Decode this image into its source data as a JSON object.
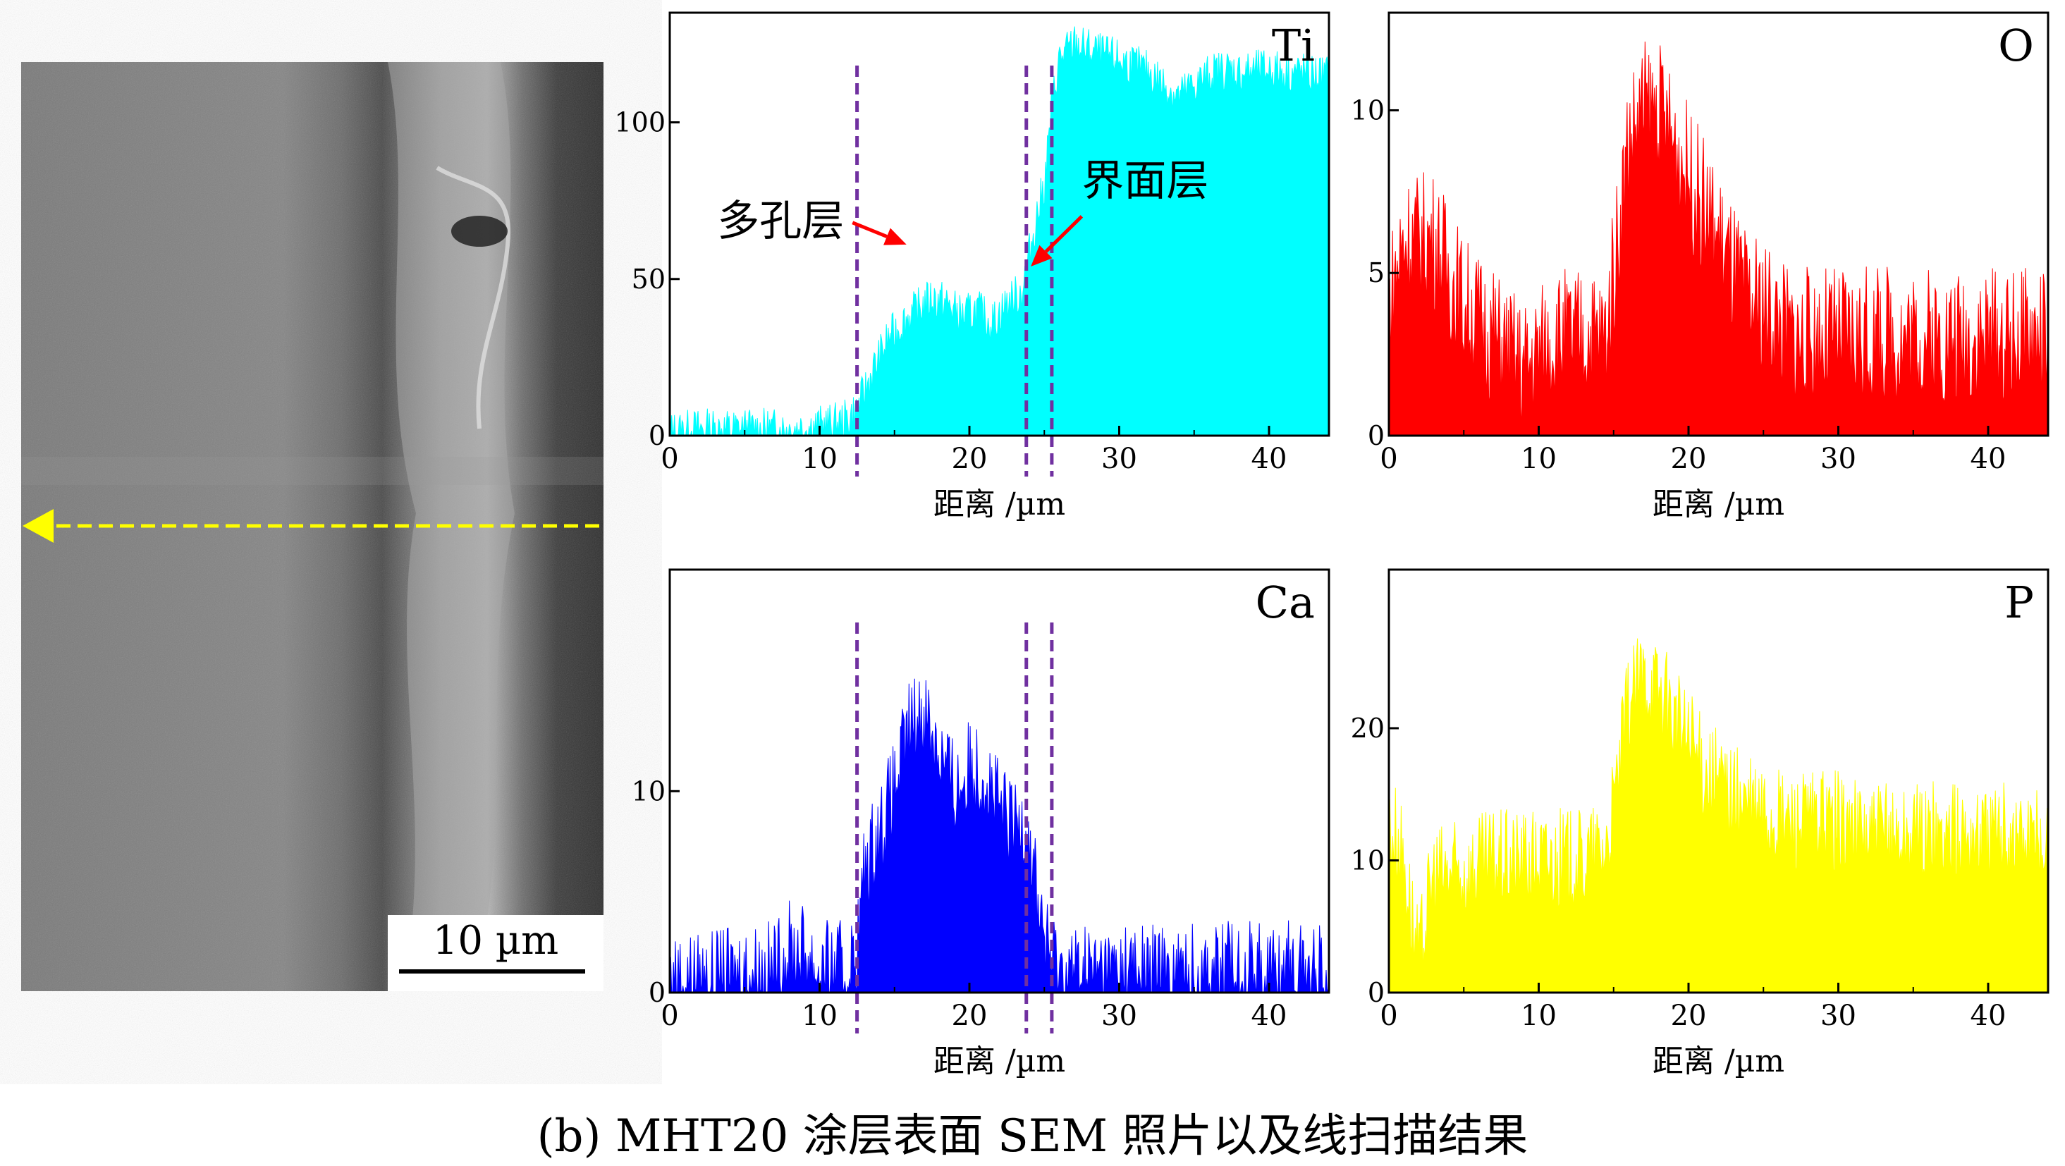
{
  "caption": "(b) MHT20 涂层表面 SEM 照片以及线扫描结果",
  "sem_image": {
    "scale_bar_label": "10 µm",
    "scan_arrow_color": "#ffff00"
  },
  "chart_data": [
    {
      "id": "ti",
      "type": "area",
      "element_label": "Ti",
      "color": "#00ffff",
      "xlabel": "距离 /µm",
      "xlim": [
        0,
        44
      ],
      "ylim": [
        0,
        135
      ],
      "xticks": [
        0,
        10,
        20,
        30,
        40
      ],
      "yticks": [
        0,
        50,
        100
      ],
      "boundaries": [
        12.5,
        23.8,
        25.5
      ],
      "boundary_color": "#7030a0",
      "annotations": [
        {
          "text": "多孔层",
          "arrow_from": [
            12.2,
            68
          ],
          "arrow_to": [
            15.8,
            61
          ]
        },
        {
          "text": "界面层",
          "arrow_from": [
            27.5,
            70
          ],
          "arrow_to": [
            24.1,
            54
          ]
        }
      ],
      "anchors": [
        [
          0,
          1
        ],
        [
          2,
          2
        ],
        [
          5,
          2
        ],
        [
          8,
          2
        ],
        [
          10,
          3
        ],
        [
          11.5,
          4
        ],
        [
          12.5,
          8
        ],
        [
          13.5,
          20
        ],
        [
          14.5,
          30
        ],
        [
          15.5,
          36
        ],
        [
          16.5,
          40
        ],
        [
          17.5,
          44
        ],
        [
          18.5,
          42
        ],
        [
          19.5,
          38
        ],
        [
          20.5,
          40
        ],
        [
          21.5,
          36
        ],
        [
          22.5,
          42
        ],
        [
          23.5,
          46
        ],
        [
          24,
          58
        ],
        [
          24.5,
          70
        ],
        [
          25,
          80
        ],
        [
          25.5,
          105
        ],
        [
          26,
          120
        ],
        [
          27,
          125
        ],
        [
          28,
          123
        ],
        [
          29,
          121
        ],
        [
          30,
          120
        ],
        [
          31,
          118
        ],
        [
          32,
          116
        ],
        [
          33,
          112
        ],
        [
          34,
          108
        ],
        [
          35,
          112
        ],
        [
          36,
          115
        ],
        [
          37,
          117
        ],
        [
          38,
          116
        ],
        [
          39,
          116
        ],
        [
          40,
          117
        ],
        [
          41,
          116
        ],
        [
          42,
          116
        ],
        [
          43,
          115
        ],
        [
          44,
          115
        ]
      ],
      "noise": 7
    },
    {
      "id": "o",
      "type": "area",
      "element_label": "O",
      "color": "#ff0000",
      "xlabel": "距离 /µm",
      "xlim": [
        0,
        44
      ],
      "ylim": [
        0,
        13
      ],
      "xticks": [
        0,
        10,
        20,
        30,
        40
      ],
      "yticks": [
        0,
        5,
        10
      ],
      "anchors": [
        [
          0,
          4
        ],
        [
          1,
          6
        ],
        [
          3,
          6
        ],
        [
          5,
          4
        ],
        [
          7,
          3
        ],
        [
          9,
          2
        ],
        [
          11,
          3
        ],
        [
          13,
          3
        ],
        [
          14.5,
          3
        ],
        [
          15,
          5
        ],
        [
          16,
          9
        ],
        [
          17,
          10
        ],
        [
          18,
          10
        ],
        [
          19,
          9
        ],
        [
          20,
          8
        ],
        [
          21,
          7
        ],
        [
          22,
          6
        ],
        [
          23,
          5
        ],
        [
          24,
          4
        ],
        [
          25,
          4
        ],
        [
          27,
          3
        ],
        [
          30,
          3
        ],
        [
          33,
          3
        ],
        [
          36,
          3
        ],
        [
          38,
          3
        ],
        [
          40,
          3
        ],
        [
          42,
          3
        ],
        [
          44,
          3
        ]
      ],
      "noise": 2.2
    },
    {
      "id": "ca",
      "type": "area",
      "element_label": "Ca",
      "color": "#0000ff",
      "xlabel": "距离 /µm",
      "xlim": [
        0,
        44
      ],
      "ylim": [
        0,
        21
      ],
      "xticks": [
        0,
        10,
        20,
        30,
        40
      ],
      "yticks": [
        0,
        10
      ],
      "boundaries": [
        12.5,
        23.8,
        25.5
      ],
      "boundary_color": "#7030a0",
      "anchors": [
        [
          0,
          0.5
        ],
        [
          3,
          0.5
        ],
        [
          5,
          1
        ],
        [
          7,
          1
        ],
        [
          8,
          2
        ],
        [
          9,
          2
        ],
        [
          10,
          1
        ],
        [
          11,
          1
        ],
        [
          12,
          1
        ],
        [
          12.5,
          2
        ],
        [
          13,
          6
        ],
        [
          14,
          8
        ],
        [
          15,
          10
        ],
        [
          16,
          13
        ],
        [
          17,
          14
        ],
        [
          18,
          12
        ],
        [
          19,
          10
        ],
        [
          20,
          11
        ],
        [
          21,
          11
        ],
        [
          22,
          9
        ],
        [
          23,
          8
        ],
        [
          23.8,
          9
        ],
        [
          24.5,
          5
        ],
        [
          25.2,
          2
        ],
        [
          26,
          1
        ],
        [
          28,
          1
        ],
        [
          30,
          1
        ],
        [
          33,
          1
        ],
        [
          36,
          1
        ],
        [
          39,
          1
        ],
        [
          41,
          1
        ],
        [
          44,
          1
        ]
      ],
      "noise": 2.6
    },
    {
      "id": "p",
      "type": "area",
      "element_label": "P",
      "color": "#ffff00",
      "xlabel": "距离 /µm",
      "xlim": [
        0,
        44
      ],
      "ylim": [
        0,
        32
      ],
      "xticks": [
        0,
        10,
        20,
        30,
        40
      ],
      "yticks": [
        0,
        10,
        20
      ],
      "anchors": [
        [
          0,
          12
        ],
        [
          0.5,
          12
        ],
        [
          1,
          10
        ],
        [
          1.5,
          6
        ],
        [
          2,
          2
        ],
        [
          2.5,
          6
        ],
        [
          3,
          9
        ],
        [
          5,
          9
        ],
        [
          7,
          10
        ],
        [
          9,
          10
        ],
        [
          11,
          10
        ],
        [
          13,
          10
        ],
        [
          14.5,
          11
        ],
        [
          15,
          14
        ],
        [
          16,
          22
        ],
        [
          17,
          24
        ],
        [
          18,
          23
        ],
        [
          19,
          21
        ],
        [
          20,
          19
        ],
        [
          21,
          17
        ],
        [
          22,
          16
        ],
        [
          23,
          15
        ],
        [
          24,
          14
        ],
        [
          26,
          13
        ],
        [
          28,
          13
        ],
        [
          30,
          13
        ],
        [
          32,
          12
        ],
        [
          34,
          12
        ],
        [
          36,
          12
        ],
        [
          38,
          12
        ],
        [
          40,
          12
        ],
        [
          42,
          12
        ],
        [
          44,
          11
        ]
      ],
      "noise": 4
    }
  ]
}
